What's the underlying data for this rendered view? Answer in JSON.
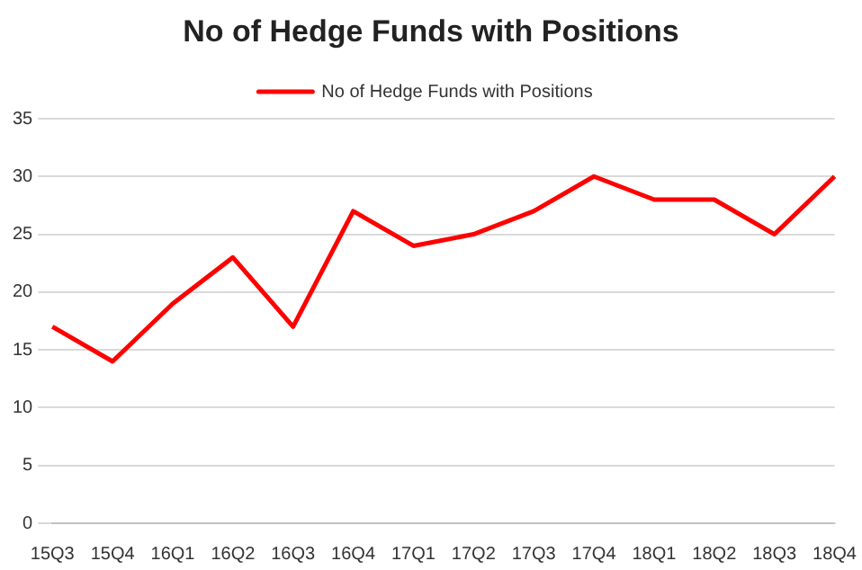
{
  "chart_data": {
    "type": "line",
    "title": "No of Hedge Funds with Positions",
    "categories": [
      "15Q3",
      "15Q4",
      "16Q1",
      "16Q2",
      "16Q3",
      "16Q4",
      "17Q1",
      "17Q2",
      "17Q3",
      "17Q4",
      "18Q1",
      "18Q2",
      "18Q3",
      "18Q4"
    ],
    "series": [
      {
        "name": "No of Hedge Funds with Positions",
        "color": "#ff0000",
        "values": [
          17,
          14,
          19,
          23,
          17,
          27,
          24,
          25,
          27,
          30,
          28,
          28,
          25,
          30
        ]
      }
    ],
    "ylim": [
      0,
      35
    ],
    "yticks": [
      0,
      5,
      10,
      15,
      20,
      25,
      30,
      35
    ],
    "grid": "y",
    "legend": "top",
    "marker": "none",
    "line_style": "solid"
  }
}
